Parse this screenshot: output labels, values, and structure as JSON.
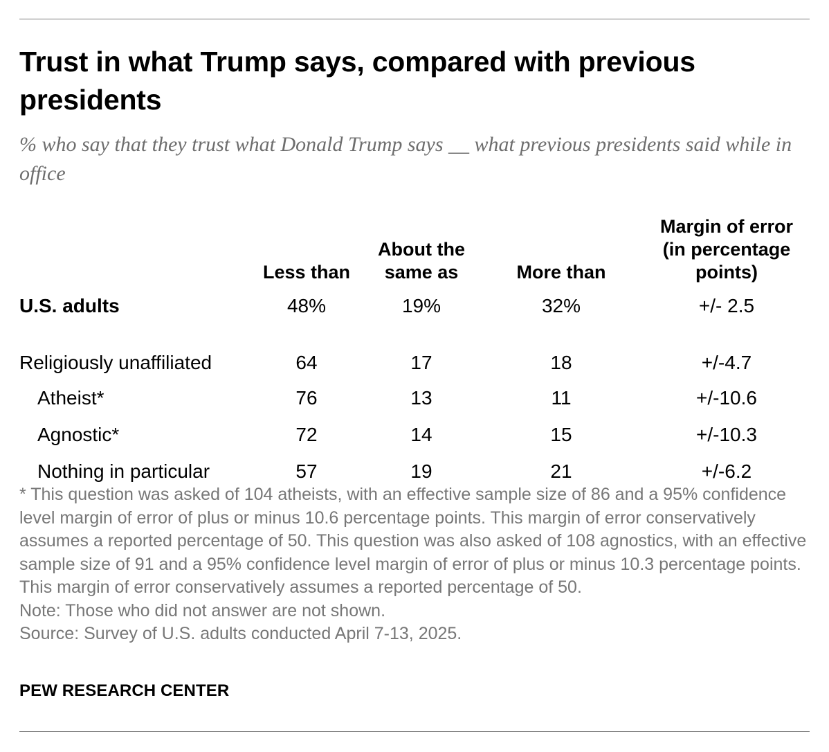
{
  "chart_data": {
    "type": "table",
    "title": "Trust in what Trump says, compared with previous presidents",
    "subtitle": "% who say that they trust what Donald Trump says __ what previous presidents said while in office",
    "columns": [
      "Less than",
      "About the same as",
      "More than",
      "Margin of error (in percentage points)"
    ],
    "rows": [
      {
        "label": "U.S. adults",
        "values": [
          "48%",
          "19%",
          "32%"
        ],
        "moe": "+/- 2.5"
      },
      {
        "label": "Religiously unaffiliated",
        "values": [
          "64",
          "17",
          "18"
        ],
        "moe": "+/-4.7"
      },
      {
        "label": "Atheist*",
        "values": [
          "76",
          "13",
          "11"
        ],
        "moe": "+/-10.6"
      },
      {
        "label": "Agnostic*",
        "values": [
          "72",
          "14",
          "15"
        ],
        "moe": "+/-10.3"
      },
      {
        "label": "Nothing in particular",
        "values": [
          "57",
          "19",
          "21"
        ],
        "moe": "+/-6.2"
      }
    ],
    "footnote": "* This question was asked of 104 atheists, with an effective sample size of 86 and a 95% confidence level margin of error of plus or minus 10.6 percentage points. This margin of error conservatively assumes a reported percentage of 50. This question was also asked of 108 agnostics, with an effective sample size of 91 and a 95% confidence level margin of error of plus or minus 10.3 percentage points. This margin of error conservatively assumes a reported percentage of 50.",
    "note": "Note: Those who did not answer are not shown.",
    "source": "Source: Survey of U.S. adults conducted April 7-13, 2025."
  },
  "header": {
    "col_less_1": "Less than",
    "col_same_1": "About the",
    "col_same_2": "same as",
    "col_more_1": "More than",
    "col_moe_1": "Margin of error",
    "col_moe_2": "(in percentage",
    "col_moe_3": "points)"
  },
  "brand": "PEW RESEARCH CENTER"
}
